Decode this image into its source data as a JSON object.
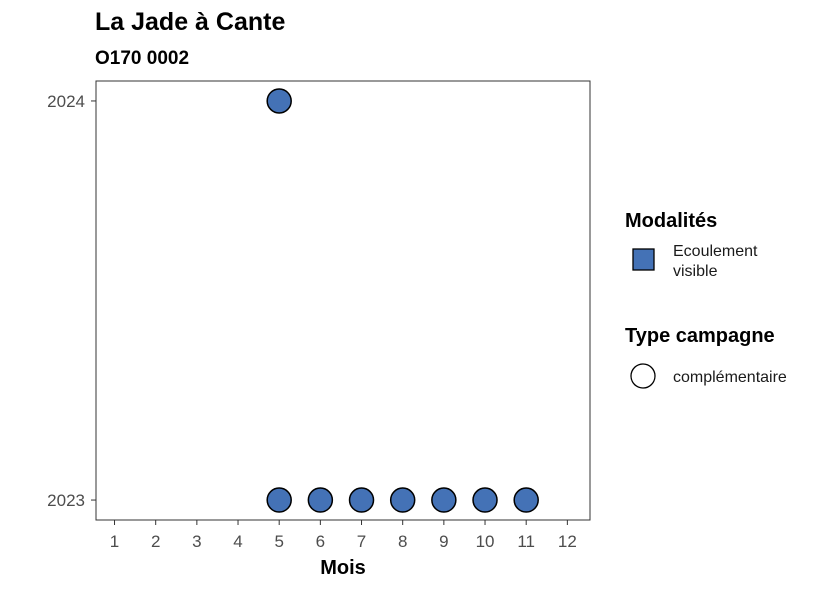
{
  "chart_data": {
    "type": "scatter",
    "title": "La Jade à Cante",
    "subtitle": "O170 0002",
    "xlabel": "Mois",
    "ylabel": "",
    "x_ticks": [
      1,
      2,
      3,
      4,
      5,
      6,
      7,
      8,
      9,
      10,
      11,
      12
    ],
    "y_ticks": [
      2023,
      2024
    ],
    "xlim": [
      0.55,
      12.55
    ],
    "ylim": [
      2022.95,
      2024.05
    ],
    "grid": false,
    "legend_position": "right",
    "points": [
      {
        "x": 5,
        "y": 2024
      },
      {
        "x": 5,
        "y": 2023
      },
      {
        "x": 6,
        "y": 2023
      },
      {
        "x": 7,
        "y": 2023
      },
      {
        "x": 8,
        "y": 2023
      },
      {
        "x": 9,
        "y": 2023
      },
      {
        "x": 10,
        "y": 2023
      },
      {
        "x": 11,
        "y": 2023
      }
    ],
    "legend": {
      "modalites_title": "Modalités",
      "modalites_items": [
        {
          "label_lines": [
            "Ecoulement",
            "visible"
          ],
          "color": "#4472b6"
        }
      ],
      "campagne_title": "Type campagne",
      "campagne_items": [
        {
          "label": "complémentaire"
        }
      ]
    },
    "point_color": "#4472b6"
  }
}
